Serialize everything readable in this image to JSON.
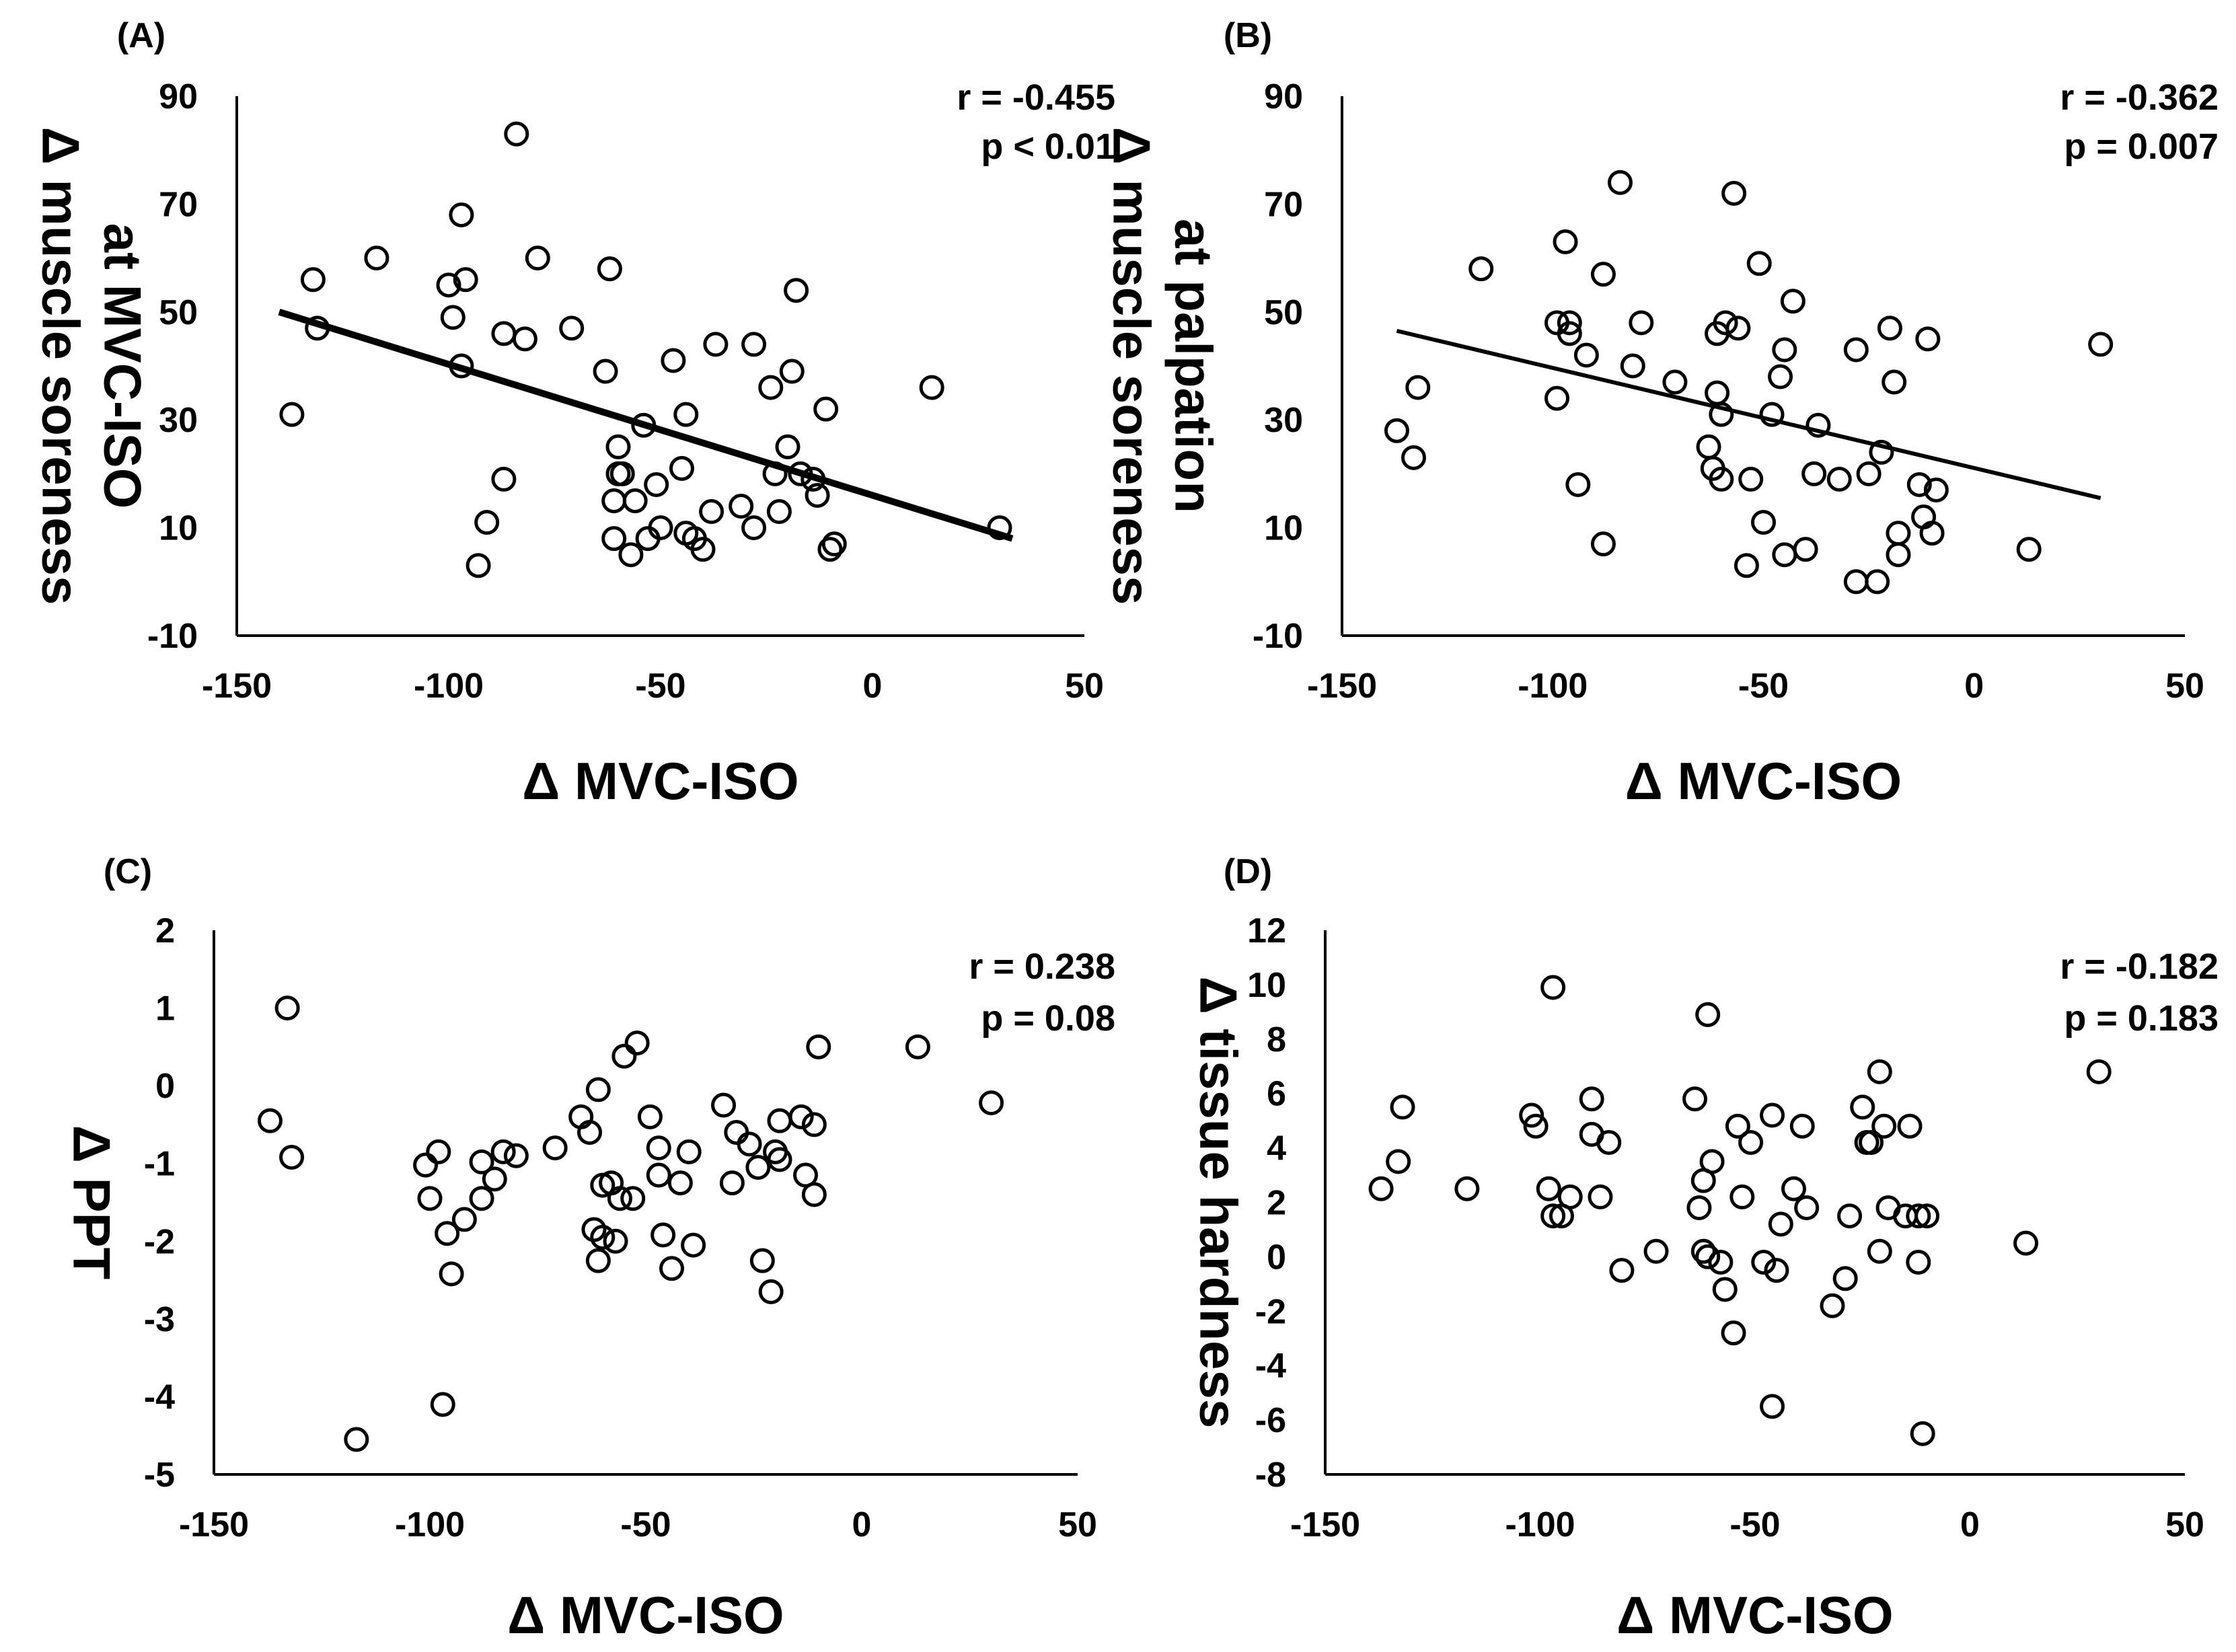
{
  "chart_data": [
    {
      "panel": "(A)",
      "type": "scatter",
      "xlabel": "Δ MVC-ISO",
      "ylabel": [
        "Δ muscle soreness",
        "at MVC-ISO"
      ],
      "xlim": [
        -150,
        50
      ],
      "ylim": [
        -10,
        90
      ],
      "xticks": [
        "-150",
        "-100",
        "-50",
        "0",
        "50"
      ],
      "yticks": [
        "90",
        "70",
        "50",
        "30",
        "10",
        "-10"
      ],
      "stats": [
        "r = -0.455",
        "p < 0.01"
      ],
      "trendline": {
        "x": [
          -140,
          33
        ],
        "y": [
          50,
          8
        ]
      },
      "points": [
        [
          -137,
          31
        ],
        [
          -132,
          56
        ],
        [
          -131,
          47
        ],
        [
          -117,
          60
        ],
        [
          -100,
          55
        ],
        [
          -99,
          49
        ],
        [
          -97,
          68
        ],
        [
          -96,
          56
        ],
        [
          -97,
          40
        ],
        [
          -93,
          3
        ],
        [
          -91,
          11
        ],
        [
          -87,
          19
        ],
        [
          -87,
          46
        ],
        [
          -84,
          83
        ],
        [
          -82,
          45
        ],
        [
          -79,
          60
        ],
        [
          -71,
          47
        ],
        [
          -63,
          39
        ],
        [
          -62,
          58
        ],
        [
          -61,
          15
        ],
        [
          -61,
          8
        ],
        [
          -60,
          20
        ],
        [
          -60,
          25
        ],
        [
          -59,
          20
        ],
        [
          -57,
          5
        ],
        [
          -56,
          15
        ],
        [
          -54,
          29
        ],
        [
          -53,
          8
        ],
        [
          -51,
          18
        ],
        [
          -50,
          10
        ],
        [
          -47,
          41
        ],
        [
          -45,
          21
        ],
        [
          -44,
          31
        ],
        [
          -44,
          9
        ],
        [
          -42,
          8
        ],
        [
          -40,
          6
        ],
        [
          -38,
          13
        ],
        [
          -37,
          44
        ],
        [
          -31,
          14
        ],
        [
          -28,
          10
        ],
        [
          -28,
          44
        ],
        [
          -24,
          36
        ],
        [
          -23,
          20
        ],
        [
          -22,
          13
        ],
        [
          -20,
          25
        ],
        [
          -19,
          39
        ],
        [
          -18,
          54
        ],
        [
          -17,
          20
        ],
        [
          -14,
          19
        ],
        [
          -13,
          16
        ],
        [
          -11,
          32
        ],
        [
          -10,
          6
        ],
        [
          -9,
          7
        ],
        [
          14,
          36
        ],
        [
          30,
          10
        ]
      ]
    },
    {
      "panel": "(B)",
      "type": "scatter",
      "xlabel": "Δ MVC-ISO",
      "ylabel": [
        "Δ muscle soreness",
        "at palpation"
      ],
      "xlim": [
        -150,
        50
      ],
      "ylim": [
        -10,
        90
      ],
      "xticks": [
        "-150",
        "-100",
        "-50",
        "0",
        "50"
      ],
      "yticks": [
        "90",
        "70",
        "50",
        "30",
        "10",
        "-10"
      ],
      "stats": [
        "r = -0.362",
        "p = 0.007"
      ],
      "trendline": {
        "x": [
          -137,
          30
        ],
        "y": [
          46.5,
          15.5
        ]
      },
      "points": [
        [
          -137,
          28
        ],
        [
          -133,
          23
        ],
        [
          -132,
          36
        ],
        [
          -117,
          58
        ],
        [
          -99,
          34
        ],
        [
          -99,
          48
        ],
        [
          -97,
          63
        ],
        [
          -96,
          48
        ],
        [
          -96,
          46
        ],
        [
          -94,
          18
        ],
        [
          -92,
          42
        ],
        [
          -88,
          57
        ],
        [
          -88,
          7
        ],
        [
          -84,
          74
        ],
        [
          -81,
          40
        ],
        [
          -79,
          48
        ],
        [
          -71,
          37
        ],
        [
          -63,
          25
        ],
        [
          -62,
          21
        ],
        [
          -61,
          46
        ],
        [
          -61,
          35
        ],
        [
          -60,
          31
        ],
        [
          -60,
          19
        ],
        [
          -59,
          48
        ],
        [
          -57,
          72
        ],
        [
          -56,
          47
        ],
        [
          -54,
          3
        ],
        [
          -53,
          19
        ],
        [
          -51,
          59
        ],
        [
          -50,
          11
        ],
        [
          -48,
          31
        ],
        [
          -46,
          38
        ],
        [
          -45,
          43
        ],
        [
          -45,
          5
        ],
        [
          -43,
          52
        ],
        [
          -40,
          6
        ],
        [
          -38,
          20
        ],
        [
          -37,
          29
        ],
        [
          -32,
          19
        ],
        [
          -28,
          0
        ],
        [
          -28,
          43
        ],
        [
          -25,
          20
        ],
        [
          -23,
          0
        ],
        [
          -22,
          24
        ],
        [
          -20,
          47
        ],
        [
          -19,
          37
        ],
        [
          -18,
          5
        ],
        [
          -18,
          9
        ],
        [
          -13,
          18
        ],
        [
          -12,
          12
        ],
        [
          -11,
          45
        ],
        [
          -10,
          9
        ],
        [
          -9,
          17
        ],
        [
          13,
          6
        ],
        [
          30,
          44
        ]
      ]
    },
    {
      "panel": "(C)",
      "type": "scatter",
      "xlabel": "Δ MVC-ISO",
      "ylabel": [
        "Δ PPT"
      ],
      "xlim": [
        -150,
        50
      ],
      "ylim": [
        -5,
        2
      ],
      "xticks": [
        "-150",
        "-100",
        "-50",
        "0",
        "50"
      ],
      "yticks": [
        "2",
        "1",
        "0",
        "-1",
        "-2",
        "-3",
        "-4",
        "-5"
      ],
      "stats": [
        "r = 0.238",
        "p = 0.08"
      ],
      "points": [
        [
          -137,
          -0.45
        ],
        [
          -133,
          1.0
        ],
        [
          -132,
          -0.92
        ],
        [
          -117,
          -4.55
        ],
        [
          -101,
          -1.02
        ],
        [
          -100,
          -1.45
        ],
        [
          -98,
          -0.85
        ],
        [
          -97,
          -4.1
        ],
        [
          -96,
          -1.9
        ],
        [
          -95,
          -2.42
        ],
        [
          -92,
          -1.72
        ],
        [
          -88,
          -1.45
        ],
        [
          -88,
          -0.98
        ],
        [
          -85,
          -1.2
        ],
        [
          -83,
          -0.85
        ],
        [
          -80,
          -0.9
        ],
        [
          -71,
          -0.8
        ],
        [
          -65,
          -0.4
        ],
        [
          -63,
          -0.6
        ],
        [
          -62,
          -1.85
        ],
        [
          -61,
          -2.25
        ],
        [
          -61,
          -0.05
        ],
        [
          -60,
          -1.28
        ],
        [
          -60,
          -1.95
        ],
        [
          -58,
          -1.25
        ],
        [
          -57,
          -2.0
        ],
        [
          -56,
          -1.45
        ],
        [
          -55,
          0.38
        ],
        [
          -53,
          -1.45
        ],
        [
          -52,
          0.55
        ],
        [
          -49,
          -0.4
        ],
        [
          -47,
          -1.15
        ],
        [
          -47,
          -0.8
        ],
        [
          -46,
          -1.92
        ],
        [
          -44,
          -2.35
        ],
        [
          -42,
          -1.25
        ],
        [
          -40,
          -0.85
        ],
        [
          -39,
          -2.05
        ],
        [
          -32,
          -0.25
        ],
        [
          -30,
          -1.25
        ],
        [
          -29,
          -0.6
        ],
        [
          -26,
          -0.75
        ],
        [
          -24,
          -1.05
        ],
        [
          -23,
          -2.25
        ],
        [
          -21,
          -2.65
        ],
        [
          -20,
          -0.85
        ],
        [
          -19,
          -0.95
        ],
        [
          -19,
          -0.45
        ],
        [
          -14,
          -0.4
        ],
        [
          -13,
          -1.15
        ],
        [
          -11,
          -1.4
        ],
        [
          -11,
          -0.5
        ],
        [
          -10,
          0.5
        ],
        [
          13,
          0.5
        ],
        [
          30,
          -0.22
        ]
      ]
    },
    {
      "panel": "(D)",
      "type": "scatter",
      "xlabel": "Δ MVC-ISO",
      "ylabel": [
        "Δ tissue hardness"
      ],
      "xlim": [
        -150,
        50
      ],
      "ylim": [
        -8,
        12
      ],
      "xticks": [
        "-150",
        "-100",
        "-50",
        "0",
        "50"
      ],
      "yticks": [
        "12",
        "10",
        "8",
        "6",
        "4",
        "2",
        "0",
        "-2",
        "-4",
        "-6",
        "-8"
      ],
      "stats": [
        "r = -0.182",
        "p = 0.183"
      ],
      "points": [
        [
          -137,
          2.5
        ],
        [
          -133,
          3.5
        ],
        [
          -132,
          5.5
        ],
        [
          -117,
          2.5
        ],
        [
          -102,
          5.2
        ],
        [
          -101,
          4.8
        ],
        [
          -98,
          2.5
        ],
        [
          -97,
          9.9
        ],
        [
          -97,
          1.5
        ],
        [
          -95,
          1.5
        ],
        [
          -93,
          2.2
        ],
        [
          -88,
          5.8
        ],
        [
          -88,
          4.5
        ],
        [
          -86,
          2.2
        ],
        [
          -84,
          4.2
        ],
        [
          -81,
          -0.5
        ],
        [
          -73,
          0.2
        ],
        [
          -64,
          5.8
        ],
        [
          -63,
          1.8
        ],
        [
          -62,
          2.8
        ],
        [
          -62,
          0.2
        ],
        [
          -61,
          8.9
        ],
        [
          -61,
          0.0
        ],
        [
          -60,
          3.5
        ],
        [
          -58,
          -0.2
        ],
        [
          -57,
          -1.2
        ],
        [
          -55,
          -2.8
        ],
        [
          -54,
          4.8
        ],
        [
          -53,
          2.2
        ],
        [
          -51,
          4.2
        ],
        [
          -48,
          -0.2
        ],
        [
          -46,
          5.2
        ],
        [
          -46,
          -5.5
        ],
        [
          -45,
          -0.5
        ],
        [
          -44,
          1.2
        ],
        [
          -41,
          2.5
        ],
        [
          -39,
          4.8
        ],
        [
          -38,
          1.8
        ],
        [
          -32,
          -1.8
        ],
        [
          -29,
          -0.8
        ],
        [
          -28,
          1.5
        ],
        [
          -25,
          5.5
        ],
        [
          -24,
          4.2
        ],
        [
          -23,
          4.2
        ],
        [
          -21,
          6.8
        ],
        [
          -21,
          0.2
        ],
        [
          -20,
          4.8
        ],
        [
          -19,
          1.8
        ],
        [
          -15,
          1.5
        ],
        [
          -14,
          4.8
        ],
        [
          -12,
          1.5
        ],
        [
          -12,
          -0.2
        ],
        [
          -11,
          -6.5
        ],
        [
          -10,
          1.5
        ],
        [
          13,
          0.5
        ],
        [
          30,
          6.8
        ]
      ]
    }
  ]
}
